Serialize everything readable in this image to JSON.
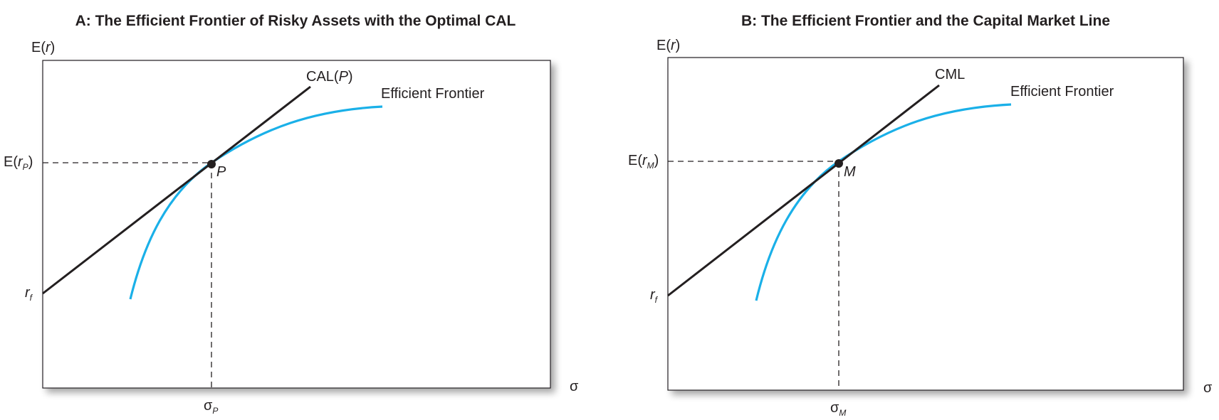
{
  "colors": {
    "frontier": "#1ab0e8",
    "line": "#231f20"
  },
  "panels": [
    {
      "title": "A: The Efficient Frontier of Risky Assets with the Optimal CAL",
      "y_axis_label": {
        "base": "E(",
        "ital": "r",
        "close": ")"
      },
      "x_axis_label": "σ",
      "line_label": {
        "base": "CAL(",
        "ital": "P",
        "close": ")"
      },
      "frontier_label": "Efficient Frontier",
      "point_label": "P",
      "expected_return_label": {
        "base": "E(",
        "ital": "r",
        "sub": "P",
        "close": ")"
      },
      "rf_label": {
        "ital": "r",
        "sub": "f"
      },
      "sigma_label": {
        "base": "σ",
        "sub": "P"
      }
    },
    {
      "title": "B: The Efficient Frontier and the Capital Market Line",
      "y_axis_label": {
        "base": "E(",
        "ital": "r",
        "close": ")"
      },
      "x_axis_label": "σ",
      "line_label": {
        "base": "CML",
        "ital": "",
        "close": ""
      },
      "frontier_label": "Efficient Frontier",
      "point_label": "M",
      "expected_return_label": {
        "base": "E(",
        "ital": "r",
        "sub": "M",
        "close": ")"
      },
      "rf_label": {
        "ital": "r",
        "sub": "f"
      },
      "sigma_label": {
        "base": "σ",
        "sub": "M"
      }
    }
  ]
}
